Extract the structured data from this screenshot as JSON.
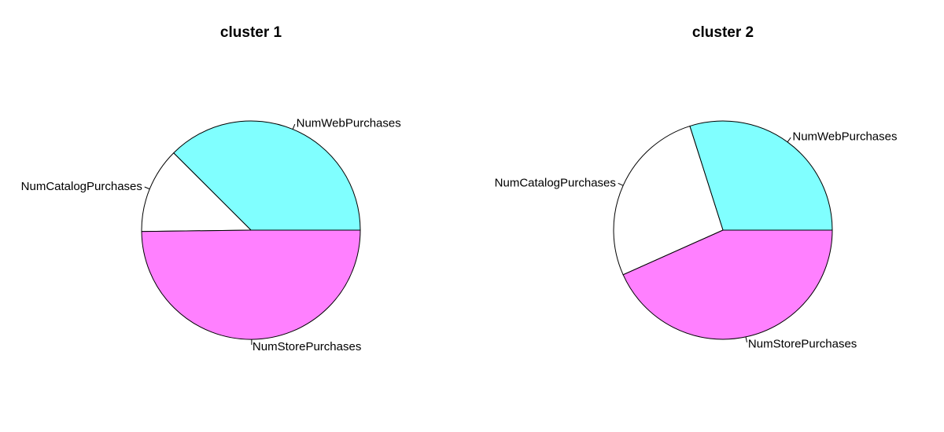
{
  "chart_data": [
    {
      "type": "pie",
      "title": "cluster 1",
      "slices": [
        {
          "label": "NumWebPurchases",
          "value": 0.375,
          "color": "#80FFFF"
        },
        {
          "label": "NumCatalogPurchases",
          "value": 0.127,
          "color": "#FFFFFF"
        },
        {
          "label": "NumStorePurchases",
          "value": 0.498,
          "color": "#FF80FF"
        }
      ]
    },
    {
      "type": "pie",
      "title": "cluster 2",
      "slices": [
        {
          "label": "NumWebPurchases",
          "value": 0.299,
          "color": "#80FFFF"
        },
        {
          "label": "NumCatalogPurchases",
          "value": 0.268,
          "color": "#FFFFFF"
        },
        {
          "label": "NumStorePurchases",
          "value": 0.433,
          "color": "#FF80FF"
        }
      ]
    }
  ]
}
